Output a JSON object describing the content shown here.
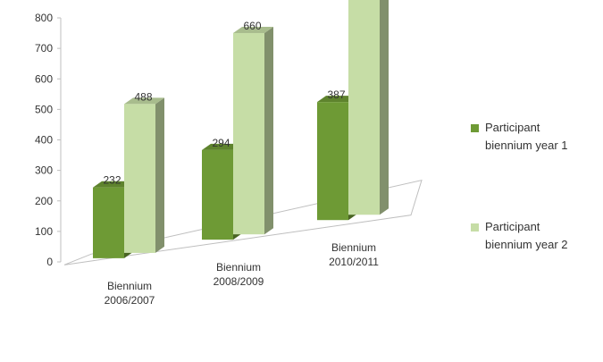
{
  "chart_data": {
    "type": "bar",
    "categories": [
      "Biennium\n2006/2007",
      "Biennium\n2008/2009",
      "Biennium\n2010/2011"
    ],
    "series": [
      {
        "name": "Participant biennium year 1",
        "values": [
          232,
          294,
          387
        ],
        "color": "#6e9a35"
      },
      {
        "name": "Participant biennium year 2",
        "values": [
          488,
          660,
          783
        ],
        "color": "#c6dda6"
      }
    ],
    "ylim": [
      0,
      800
    ],
    "yticks": [
      0,
      100,
      200,
      300,
      400,
      500,
      600,
      700,
      800
    ],
    "grid": false,
    "legend": "right"
  },
  "legend": {
    "items": [
      {
        "line1": "Participant",
        "line2": "biennium year 1",
        "color": "#6e9a35"
      },
      {
        "line1": "Participant",
        "line2": "biennium year 2",
        "color": "#c6dda6"
      }
    ]
  }
}
